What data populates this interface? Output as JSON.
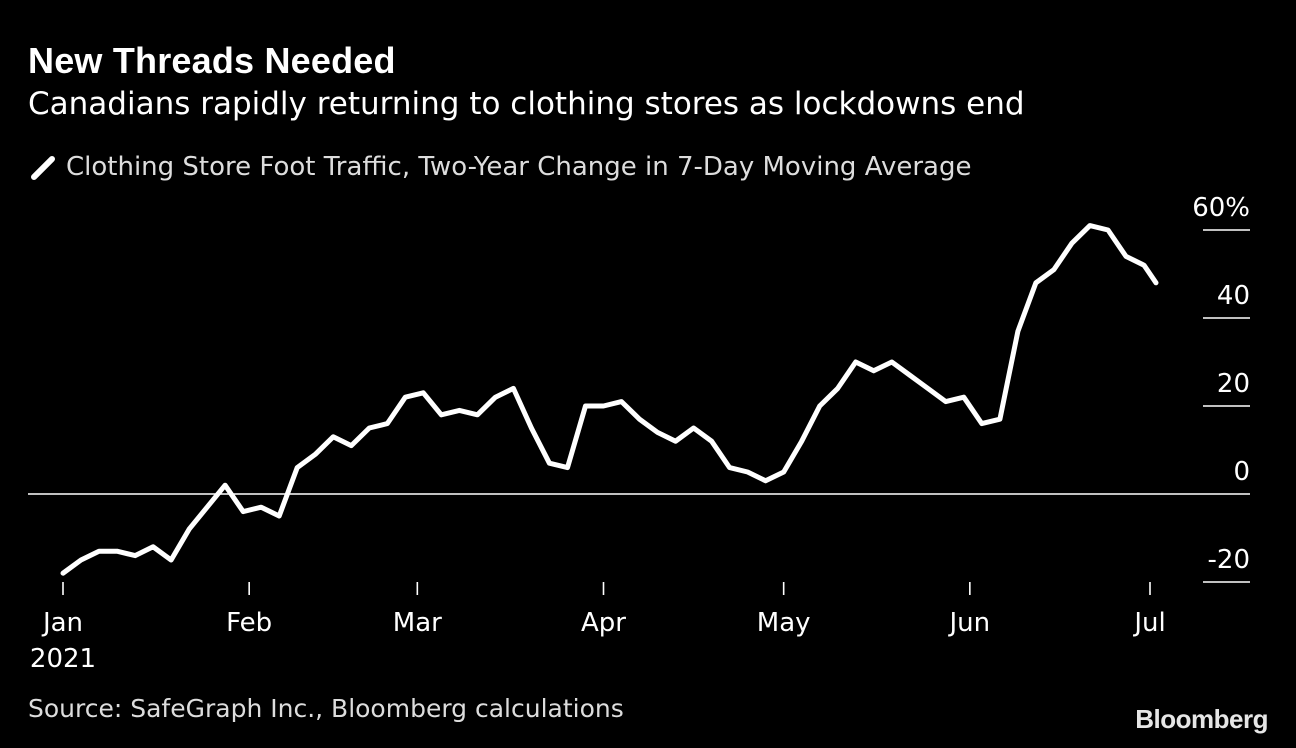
{
  "header": {
    "title": "New Threads Needed",
    "subtitle": "Canadians rapidly returning to clothing stores as lockdowns end"
  },
  "footer": {
    "source": "Source: SafeGraph Inc., Bloomberg calculations",
    "brand": "Bloomberg"
  },
  "colors": {
    "background": "#000000",
    "line": "#ffffff",
    "axis": "#ffffff"
  },
  "chart_data": {
    "type": "line",
    "title": "New Threads Needed",
    "subtitle": "Canadians rapidly returning to clothing stores as lockdowns end",
    "series": [
      {
        "name": "Clothing Store Foot Traffic, Two-Year Change in 7-Day Moving Average",
        "x": [
          "2021-01-01",
          "2021-01-04",
          "2021-01-07",
          "2021-01-10",
          "2021-01-13",
          "2021-01-16",
          "2021-01-19",
          "2021-01-22",
          "2021-01-25",
          "2021-01-28",
          "2021-01-31",
          "2021-02-03",
          "2021-02-06",
          "2021-02-09",
          "2021-02-12",
          "2021-02-15",
          "2021-02-18",
          "2021-02-21",
          "2021-02-24",
          "2021-02-27",
          "2021-03-02",
          "2021-03-05",
          "2021-03-08",
          "2021-03-11",
          "2021-03-14",
          "2021-03-17",
          "2021-03-20",
          "2021-03-23",
          "2021-03-26",
          "2021-03-29",
          "2021-04-01",
          "2021-04-04",
          "2021-04-07",
          "2021-04-10",
          "2021-04-13",
          "2021-04-16",
          "2021-04-19",
          "2021-04-22",
          "2021-04-25",
          "2021-04-28",
          "2021-05-01",
          "2021-05-04",
          "2021-05-07",
          "2021-05-10",
          "2021-05-13",
          "2021-05-16",
          "2021-05-19",
          "2021-05-22",
          "2021-05-25",
          "2021-05-28",
          "2021-05-31",
          "2021-06-03",
          "2021-06-06",
          "2021-06-09",
          "2021-06-12",
          "2021-06-15",
          "2021-06-18",
          "2021-06-21",
          "2021-06-24",
          "2021-06-27",
          "2021-06-30",
          "2021-07-02"
        ],
        "values": [
          -18,
          -15,
          -13,
          -13,
          -14,
          -12,
          -15,
          -8,
          -3,
          2,
          -4,
          -3,
          -5,
          6,
          9,
          13,
          11,
          15,
          16,
          22,
          23,
          18,
          19,
          18,
          22,
          24,
          15,
          7,
          6,
          20,
          20,
          21,
          17,
          14,
          12,
          15,
          12,
          6,
          5,
          3,
          5,
          12,
          20,
          24,
          30,
          28,
          30,
          27,
          24,
          21,
          22,
          16,
          17,
          37,
          48,
          51,
          57,
          61,
          60,
          54,
          52,
          48
        ]
      }
    ],
    "xaxis": {
      "type": "date",
      "range": [
        "2021-01-01",
        "2021-07-05"
      ],
      "ticks": [
        {
          "value": "2021-01-01",
          "label": "Jan",
          "sublabel": "2021"
        },
        {
          "value": "2021-02-01",
          "label": "Feb"
        },
        {
          "value": "2021-03-01",
          "label": "Mar"
        },
        {
          "value": "2021-04-01",
          "label": "Apr"
        },
        {
          "value": "2021-05-01",
          "label": "May"
        },
        {
          "value": "2021-06-01",
          "label": "Jun"
        },
        {
          "value": "2021-07-01",
          "label": "Jul"
        }
      ]
    },
    "yaxis": {
      "range": [
        -20,
        60
      ],
      "side": "right",
      "ticks": [
        {
          "value": 60,
          "label": "60%"
        },
        {
          "value": 40,
          "label": "40"
        },
        {
          "value": 20,
          "label": "20"
        },
        {
          "value": 0,
          "label": "0"
        },
        {
          "value": -20,
          "label": "-20"
        }
      ]
    },
    "zero_line": true,
    "grid": false,
    "legend": "top-left"
  }
}
